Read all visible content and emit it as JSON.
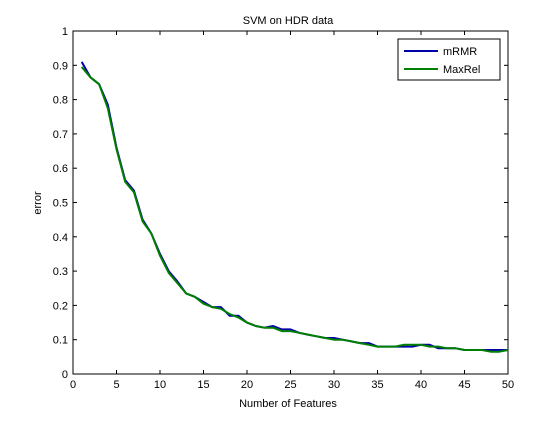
{
  "chart_data": {
    "type": "line",
    "title": "SVM on HDR data",
    "xlabel": "Number of Features",
    "ylabel": "error",
    "xlim": [
      0,
      50
    ],
    "ylim": [
      0,
      1
    ],
    "xticks": [
      0,
      5,
      10,
      15,
      20,
      25,
      30,
      35,
      40,
      45,
      50
    ],
    "yticks": [
      0,
      0.1,
      0.2,
      0.3,
      0.4,
      0.5,
      0.6,
      0.7,
      0.8,
      0.9,
      1
    ],
    "grid": false,
    "legend_position": "top-right",
    "x": [
      1,
      2,
      3,
      4,
      5,
      6,
      7,
      8,
      9,
      10,
      11,
      12,
      13,
      14,
      15,
      16,
      17,
      18,
      19,
      20,
      21,
      22,
      23,
      24,
      25,
      26,
      27,
      28,
      29,
      30,
      31,
      32,
      33,
      34,
      35,
      36,
      37,
      38,
      39,
      40,
      41,
      42,
      43,
      44,
      45,
      46,
      47,
      48,
      49,
      50
    ],
    "series": [
      {
        "name": "mRMR",
        "color": "#0000aa",
        "values": [
          0.91,
          0.865,
          0.845,
          0.785,
          0.66,
          0.565,
          0.535,
          0.45,
          0.41,
          0.35,
          0.3,
          0.27,
          0.235,
          0.225,
          0.21,
          0.195,
          0.195,
          0.17,
          0.17,
          0.15,
          0.14,
          0.135,
          0.14,
          0.13,
          0.13,
          0.12,
          0.115,
          0.11,
          0.105,
          0.105,
          0.1,
          0.095,
          0.09,
          0.09,
          0.08,
          0.08,
          0.08,
          0.08,
          0.08,
          0.085,
          0.085,
          0.075,
          0.075,
          0.075,
          0.07,
          0.07,
          0.07,
          0.07,
          0.07,
          0.07
        ]
      },
      {
        "name": "MaxRel",
        "color": "#008000",
        "values": [
          0.895,
          0.865,
          0.845,
          0.775,
          0.655,
          0.56,
          0.53,
          0.445,
          0.41,
          0.345,
          0.295,
          0.265,
          0.235,
          0.225,
          0.205,
          0.195,
          0.19,
          0.175,
          0.165,
          0.15,
          0.14,
          0.135,
          0.135,
          0.125,
          0.125,
          0.12,
          0.115,
          0.11,
          0.105,
          0.1,
          0.1,
          0.095,
          0.09,
          0.085,
          0.08,
          0.08,
          0.08,
          0.085,
          0.085,
          0.085,
          0.08,
          0.08,
          0.075,
          0.075,
          0.07,
          0.07,
          0.07,
          0.065,
          0.065,
          0.07
        ]
      }
    ]
  }
}
